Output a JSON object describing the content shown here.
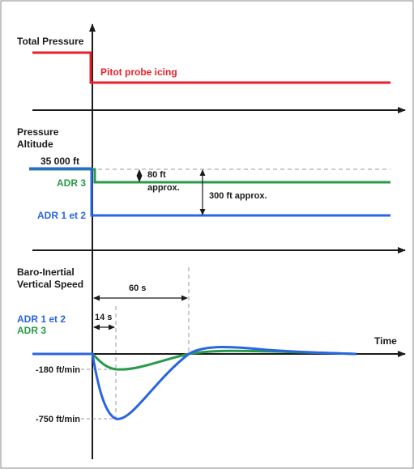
{
  "colors": {
    "red": "#e8202a",
    "green": "#2a9a4a",
    "blue": "#2a66e0",
    "axis": "#1a1a1a",
    "dashed": "#9a9a9a"
  },
  "panel1": {
    "title": "Total Pressure",
    "event": "Pitot probe icing"
  },
  "panel2": {
    "title_line1": "Pressure",
    "title_line2": "Altitude",
    "initial": "35 000 ft",
    "adr3": "ADR 3",
    "adr12": "ADR 1 et 2",
    "delta_small_line1": "80 ft",
    "delta_small_line2": "approx.",
    "delta_large": "300 ft approx."
  },
  "panel3": {
    "title_line1": "Baro-Inertial",
    "title_line2": "Vertical Speed",
    "legend_adr12": "ADR 1 et 2",
    "legend_adr3": "ADR 3",
    "duration_long": "60 s",
    "duration_short": "14 s",
    "time_label": "Time",
    "green_min": "-180 ft/min",
    "blue_min": "-750 ft/min"
  }
}
